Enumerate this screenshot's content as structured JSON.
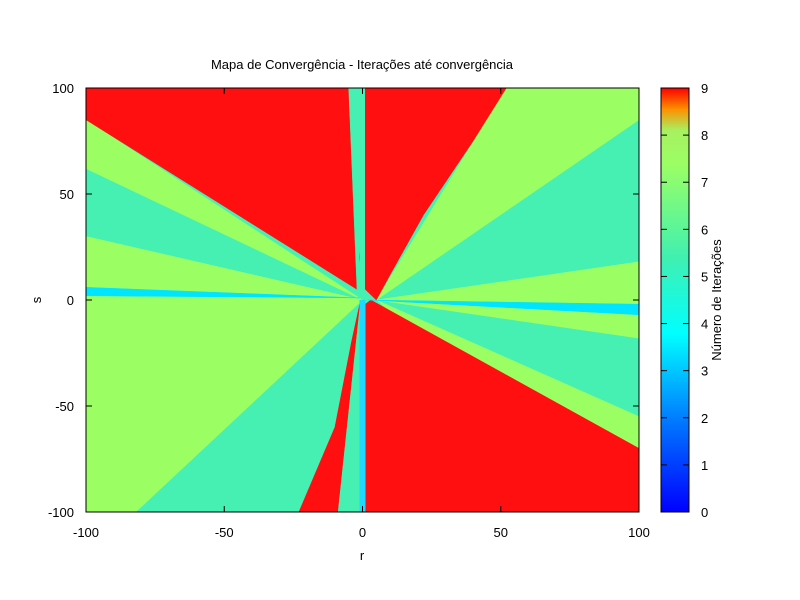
{
  "chart_data": {
    "type": "heatmap",
    "title": "Mapa de Convergência - Iterações até convergência",
    "xlabel": "r",
    "ylabel": "s",
    "xlim": [
      -100,
      100
    ],
    "ylim": [
      -100,
      100
    ],
    "xticks": [
      -100,
      -50,
      0,
      50,
      100
    ],
    "yticks": [
      -100,
      -50,
      0,
      50,
      100
    ],
    "colorbar": {
      "label": "Número de Iterações",
      "range": [
        0,
        9
      ],
      "ticks": [
        0,
        1,
        2,
        3,
        4,
        5,
        6,
        7,
        8,
        9
      ],
      "palette": [
        "#0000ff",
        "#0080ff",
        "#00ffff",
        "#40f0c0",
        "#9bff64",
        "#c0ff40",
        "#ffa000",
        "#ff0000"
      ]
    },
    "grid": false,
    "regions": [
      {
        "iterations": 6,
        "color": "#46f0b2",
        "polygon": [
          [
            -100,
            100
          ],
          [
            100,
            100
          ],
          [
            100,
            -100
          ],
          [
            -100,
            -100
          ]
        ]
      },
      {
        "iterations": 7,
        "color": "#9bff64",
        "polygon": [
          [
            -100,
            85
          ],
          [
            -100,
            62
          ],
          [
            0,
            0
          ],
          [
            -100,
            30
          ],
          [
            -100,
            -25
          ],
          [
            -100,
            -100
          ],
          [
            -82,
            -100
          ],
          [
            0,
            0
          ]
        ]
      },
      {
        "iterations": 7,
        "color": "#9bff64",
        "polygon": [
          [
            52,
            100
          ],
          [
            100,
            100
          ],
          [
            100,
            85
          ],
          [
            5,
            0
          ],
          [
            100,
            18
          ],
          [
            100,
            -18
          ],
          [
            5,
            0
          ],
          [
            100,
            -55
          ],
          [
            100,
            -100
          ],
          [
            5,
            0
          ]
        ]
      },
      {
        "iterations": 9,
        "color": "#ff0f0f",
        "polygon": [
          [
            -100,
            100
          ],
          [
            -5,
            100
          ],
          [
            -1,
            20
          ],
          [
            -2,
            5
          ],
          [
            -100,
            85
          ]
        ]
      },
      {
        "iterations": 9,
        "color": "#ff0f0f",
        "polygon": [
          [
            1,
            100
          ],
          [
            52,
            100
          ],
          [
            40,
            75
          ],
          [
            22,
            40
          ],
          [
            10,
            12
          ],
          [
            5,
            0
          ],
          [
            1,
            5
          ]
        ]
      },
      {
        "iterations": 9,
        "color": "#ff0f0f",
        "polygon": [
          [
            3,
            0
          ],
          [
            100,
            -70
          ],
          [
            100,
            -100
          ],
          [
            1,
            -100
          ],
          [
            1,
            -2
          ]
        ]
      },
      {
        "iterations": 9,
        "color": "#ff0f0f",
        "polygon": [
          [
            -23,
            -100
          ],
          [
            -10,
            -60
          ],
          [
            -4,
            -20
          ],
          [
            -1,
            -2
          ],
          [
            -9,
            -100
          ]
        ]
      },
      {
        "iterations": 5,
        "color": "#00e5ff",
        "polygon": [
          [
            -100,
            6
          ],
          [
            -1,
            1
          ],
          [
            -100,
            2
          ]
        ]
      },
      {
        "iterations": 5,
        "color": "#00e5ff",
        "polygon": [
          [
            100,
            -2
          ],
          [
            2,
            0
          ],
          [
            100,
            -7
          ]
        ]
      },
      {
        "iterations": 5,
        "color": "#1ed8ff",
        "polygon": [
          [
            -1,
            -100
          ],
          [
            1,
            -100
          ],
          [
            1,
            0
          ],
          [
            -1,
            0
          ]
        ]
      },
      {
        "iterations": 6,
        "color": "#46f0b2",
        "polygon": [
          [
            -5,
            100
          ],
          [
            -2,
            100
          ],
          [
            -1,
            10
          ],
          [
            -2,
            5
          ]
        ]
      }
    ]
  }
}
